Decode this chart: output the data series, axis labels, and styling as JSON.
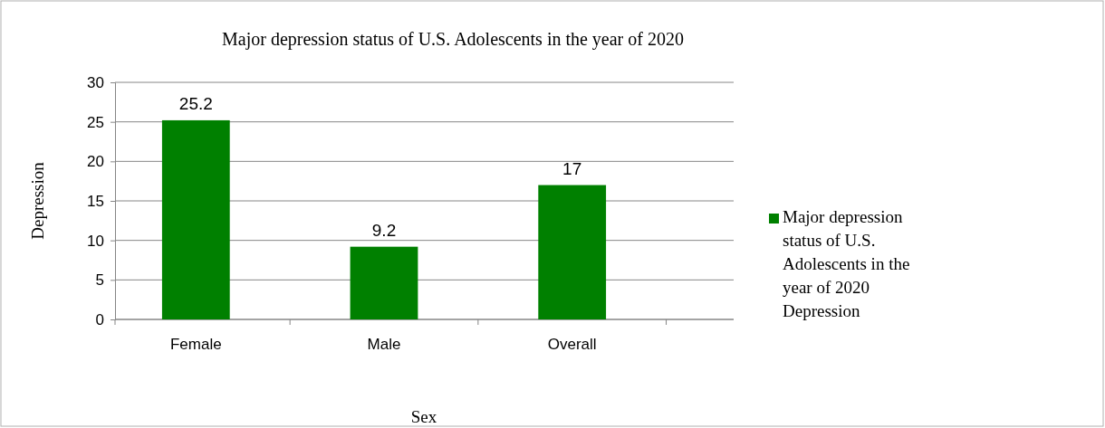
{
  "chart_data": {
    "type": "bar",
    "title": "Major depression status of U.S. Adolescents in the year of 2020",
    "xlabel": "Sex",
    "ylabel": "Depression",
    "categories": [
      "Female",
      "Male",
      "Overall"
    ],
    "series": [
      {
        "name": "Major depression status of U.S. Adolescents in the year of 2020 Depression",
        "color": "#008000",
        "values": [
          25.2,
          9.2,
          17
        ]
      }
    ],
    "ylim": [
      0,
      30
    ],
    "yticks": [
      0,
      5,
      10,
      15,
      20,
      25,
      30
    ],
    "grid": "y",
    "legend": "right",
    "data_labels": true
  }
}
